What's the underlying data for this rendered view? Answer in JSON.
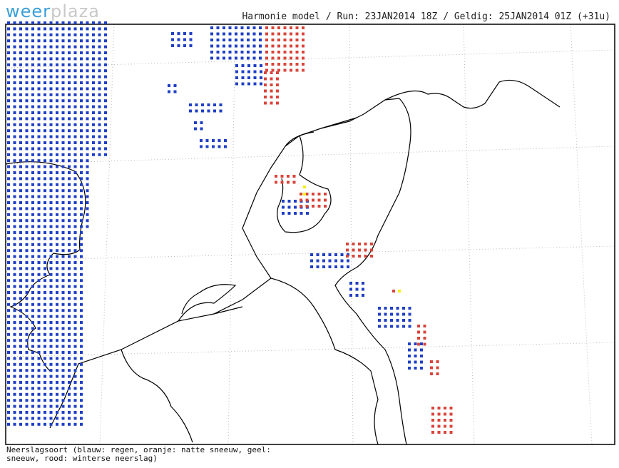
{
  "logo": {
    "first": "weer",
    "second": "plaza"
  },
  "header": {
    "title": "Harmonie model / Run: 23JAN2014 18Z / Geldig: 25JAN2014 01Z (+31u)"
  },
  "footer": {
    "lines": [
      "Neerslagsoort (blauw: regen, oranje: natte sneeuw, geel:",
      "sneeuw, rood: winterse neerslag)"
    ]
  }
}
